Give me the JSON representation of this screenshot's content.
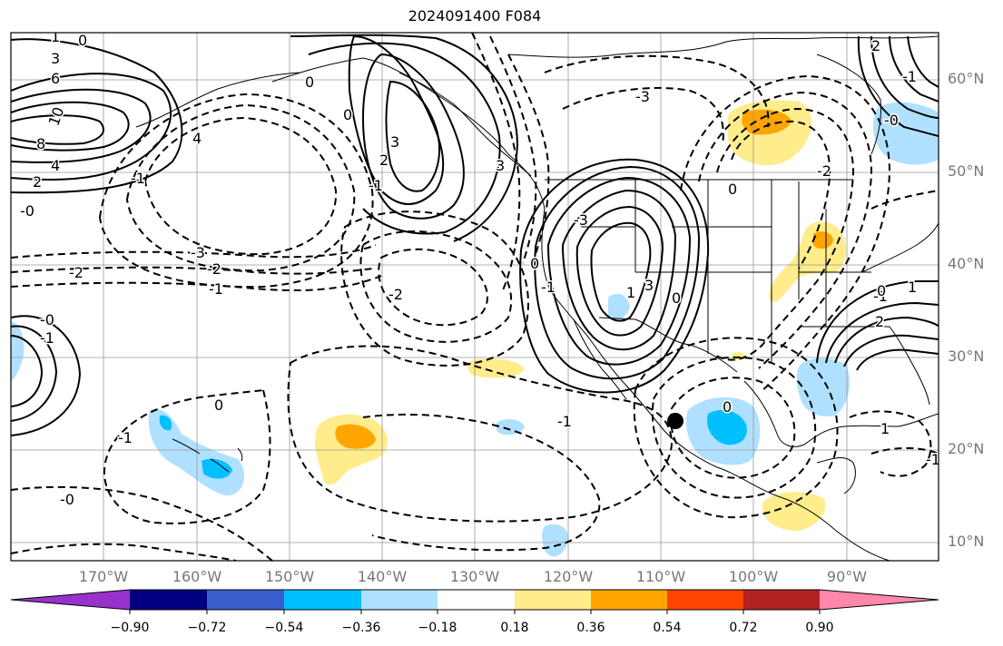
{
  "title": "2024091400 F084",
  "lat_labels": [
    "60°N",
    "50°N",
    "40°N",
    "30°N",
    "20°N",
    "10°N"
  ],
  "lon_labels": [
    "170°W",
    "160°W",
    "150°W",
    "140°W",
    "130°W",
    "120°W",
    "110°W",
    "100°W",
    "90°W"
  ],
  "colorbar": {
    "tick_labels": [
      "−0.90",
      "−0.72",
      "−0.54",
      "−0.36",
      "−0.18",
      "0.18",
      "0.36",
      "0.54",
      "0.72",
      "0.90"
    ],
    "colors": [
      "#9932cc",
      "#000080",
      "#3a5fcd",
      "#00bfff",
      "#b0e0ff",
      "#ffffff",
      "#ffec8b",
      "#ffa500",
      "#ff4500",
      "#b22222",
      "#ff88aa"
    ]
  },
  "contour_labels": [
    "0",
    "3",
    "6",
    "10",
    "8",
    "4",
    "2",
    "-0",
    "-2",
    "-3",
    "-2",
    "-1",
    "4",
    "-1",
    "0",
    "3",
    "-1",
    "2",
    "3",
    "0",
    "-2",
    "-3",
    "-1",
    "0",
    "-1",
    "-1",
    "3",
    "0",
    "1",
    "-3",
    "0",
    "0",
    "2",
    "-0",
    "-0",
    "-1",
    "-1",
    "0",
    "-0",
    "1",
    "-1",
    "0",
    "1",
    "2",
    "-1",
    "-2",
    "1"
  ],
  "colors": {
    "positive_contour": "#000000",
    "negative_contour": "#000000",
    "grid": "#999999",
    "marker": "#000000"
  }
}
